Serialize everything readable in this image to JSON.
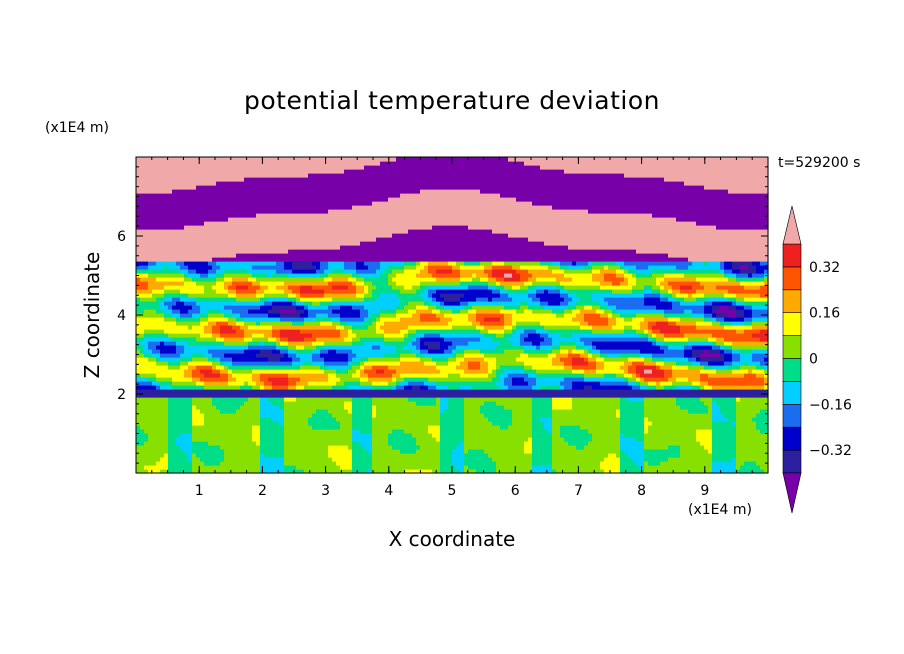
{
  "chart_data": {
    "type": "heatmap",
    "title": "potential temperature deviation",
    "xlabel": "X coordinate",
    "ylabel": "Z coordinate",
    "x_unit": "(x1E4 m)",
    "y_unit": "(x1E4 m)",
    "time_label": "t=529200 s",
    "xlim": [
      0,
      10
    ],
    "ylim": [
      0,
      8
    ],
    "x_ticks": [
      "1",
      "2",
      "3",
      "4",
      "5",
      "6",
      "7",
      "8",
      "9"
    ],
    "y_ticks": [
      "2",
      "4",
      "6"
    ],
    "colorbar": {
      "labels": [
        "0.32",
        "0.16",
        "0",
        "−0.16",
        "−0.32"
      ],
      "label_values": [
        0.32,
        0.16,
        0,
        -0.16,
        -0.32
      ],
      "levels": [
        -0.4,
        -0.32,
        -0.24,
        -0.16,
        -0.08,
        0,
        0.08,
        0.16,
        0.24,
        0.32,
        0.4
      ],
      "colors": [
        "#7700a8",
        "#2c1fa0",
        "#0000cc",
        "#1a6cf0",
        "#00cfff",
        "#00dd88",
        "#88e000",
        "#ffff00",
        "#ffaa00",
        "#ff5500",
        "#ee2020",
        "#f0a8a8"
      ],
      "extend": "both"
    },
    "field_description_bands": [
      {
        "z": [
          0,
          2.0
        ],
        "value": 0.04
      },
      {
        "z": [
          2.0,
          2.2
        ],
        "value": -0.36
      },
      {
        "z": [
          2.2,
          5.5
        ],
        "value": "mixed"
      },
      {
        "z": [
          5.5,
          8.0
        ],
        "value": "alternating pink/purple"
      }
    ]
  }
}
